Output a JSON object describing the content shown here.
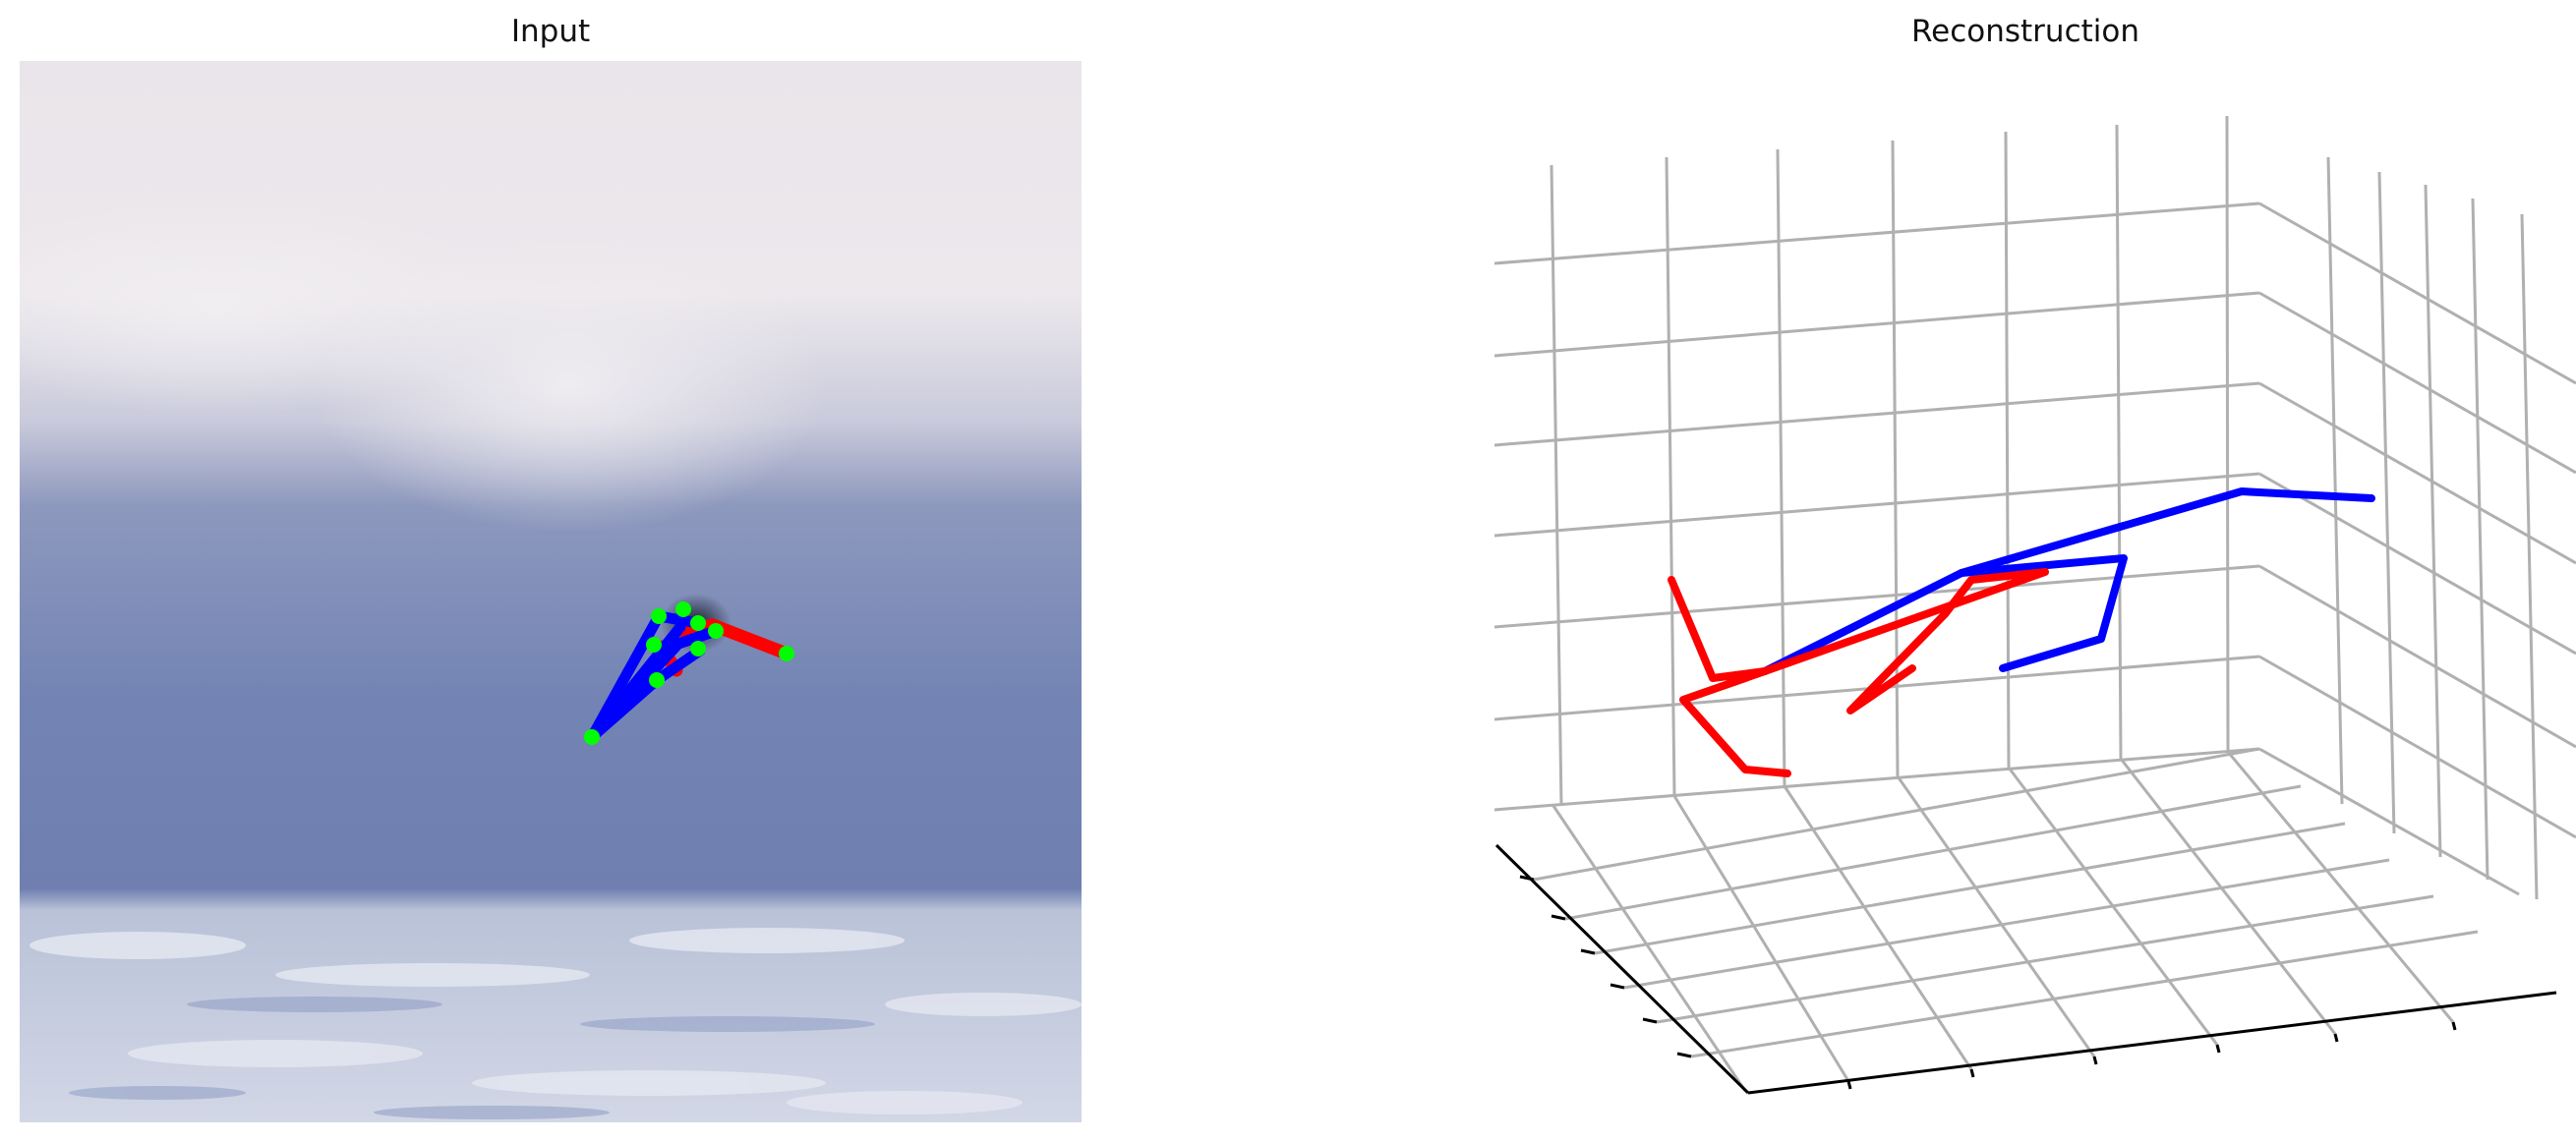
{
  "titles": {
    "input": "Input",
    "reconstruction": "Reconstruction"
  },
  "colors": {
    "left_chain": "#ff0000",
    "right_chain": "#0000ff",
    "joint_marker": "#00ff00",
    "grid": "#b0b0b0",
    "axis": "#000000",
    "sky_top": "#e8e4ea",
    "wave": "#7384b4",
    "sea": "#c6cde0"
  },
  "chart_data": {
    "type": "3d-skeleton-plot",
    "grid": true,
    "axis_tick_labels": false
  }
}
